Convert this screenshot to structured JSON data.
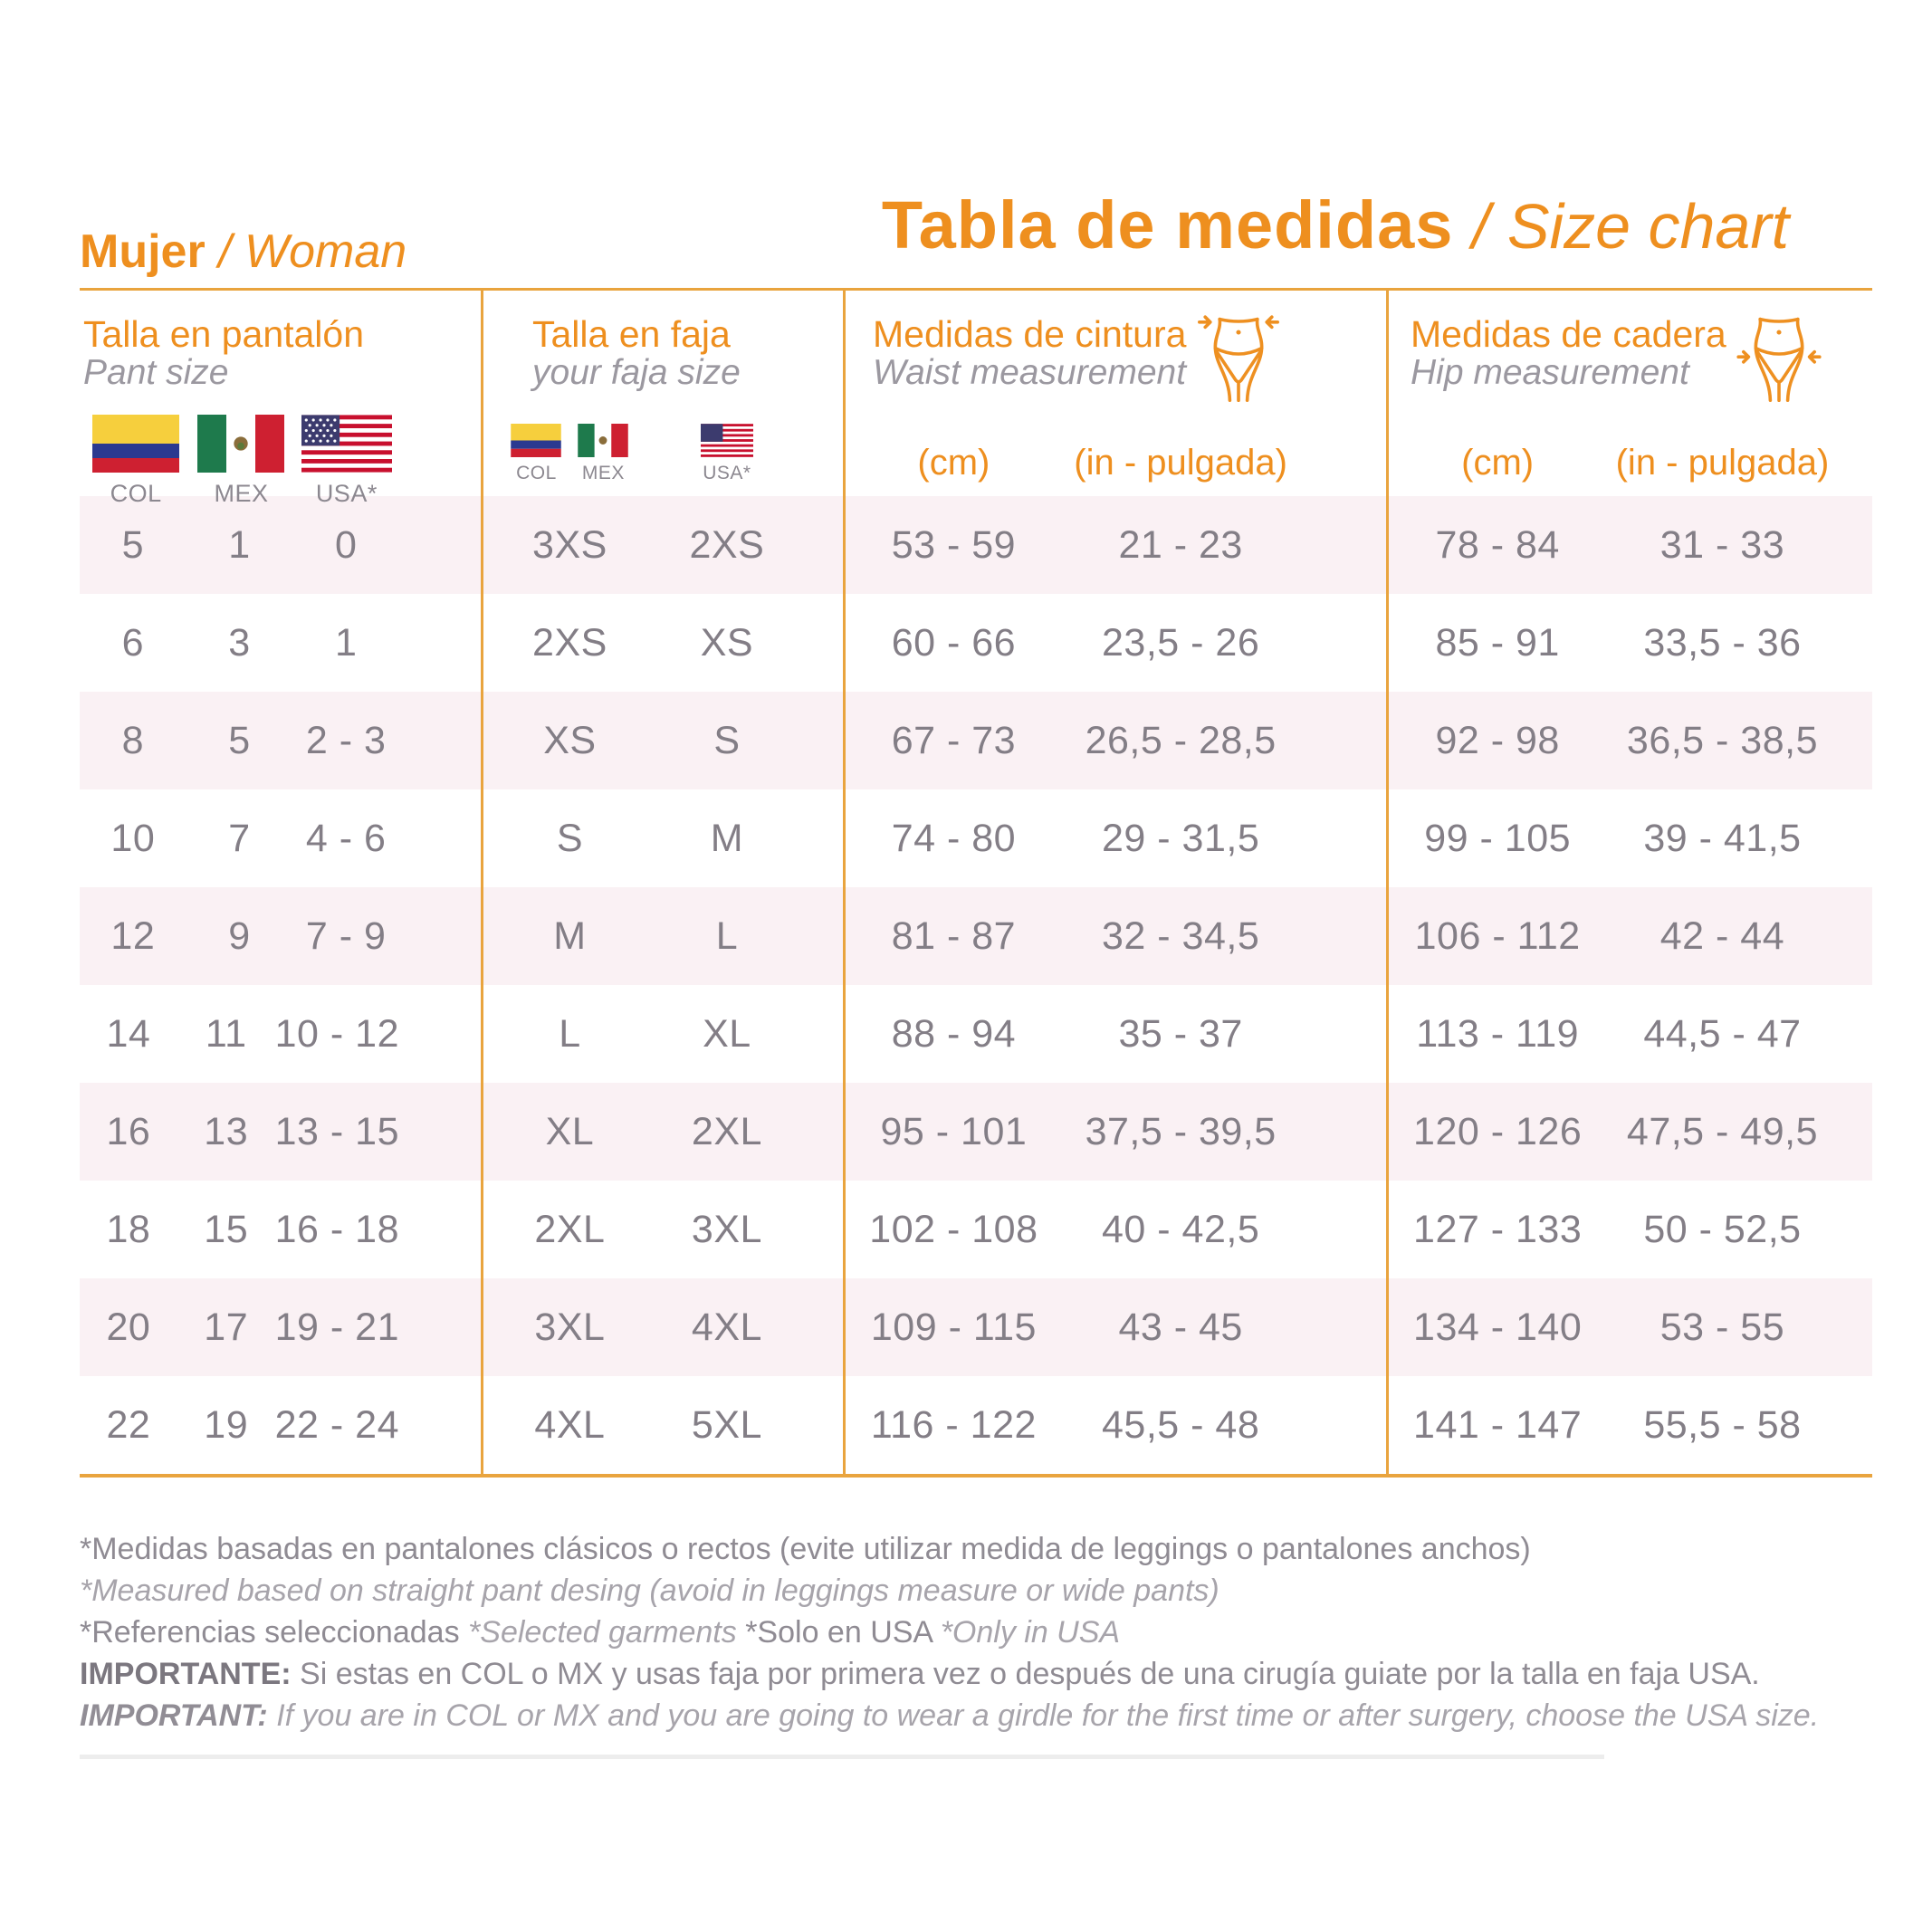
{
  "titles": {
    "section_bold": "Mujer",
    "section_rest": "/ Woman",
    "main_bold": "Tabla de medidas",
    "main_rest": "/ Size chart"
  },
  "colors": {
    "accent_orange": "#EE8F1F",
    "line_orange": "#E9A43E",
    "row_pink": "#FAF1F4",
    "data_gray": "#837E86",
    "subtitle_gray": "#9B98A0"
  },
  "table": {
    "groups": [
      {
        "title_es": "Talla en pantalón",
        "title_en": "Pant size",
        "flags": [
          "COL",
          "MEX",
          "USA*"
        ]
      },
      {
        "title_es": "Talla en faja",
        "title_en": "your faja size",
        "flags": [
          "COL",
          "MEX",
          "USA*"
        ]
      },
      {
        "title_es": "Medidas de cintura",
        "title_en": "Waist  measurement",
        "icon": "waist-measure-icon",
        "units": [
          "(cm)",
          "(in - pulgada)"
        ]
      },
      {
        "title_es": "Medidas de cadera",
        "title_en": "Hip  measurement",
        "icon": "hip-measure-icon",
        "units": [
          "(cm)",
          "(in - pulgada)"
        ]
      }
    ],
    "rows": [
      {
        "pant_col": "5",
        "pant_mex": "1",
        "pant_usa": "0",
        "faja_colmex": "3XS",
        "faja_usa": "2XS",
        "waist_cm": "53 - 59",
        "waist_in": "21 - 23",
        "hip_cm": "78 - 84",
        "hip_in": "31 - 33"
      },
      {
        "pant_col": "6",
        "pant_mex": "3",
        "pant_usa": "1",
        "faja_colmex": "2XS",
        "faja_usa": "XS",
        "waist_cm": "60 - 66",
        "waist_in": "23,5 - 26",
        "hip_cm": "85 - 91",
        "hip_in": "33,5 - 36"
      },
      {
        "pant_col": "8",
        "pant_mex": "5",
        "pant_usa": "2 - 3",
        "faja_colmex": "XS",
        "faja_usa": "S",
        "waist_cm": "67 - 73",
        "waist_in": "26,5 - 28,5",
        "hip_cm": "92 - 98",
        "hip_in": "36,5 - 38,5"
      },
      {
        "pant_col": "10",
        "pant_mex": "7",
        "pant_usa": "4 - 6",
        "faja_colmex": "S",
        "faja_usa": "M",
        "waist_cm": "74 - 80",
        "waist_in": "29 - 31,5",
        "hip_cm": "99 - 105",
        "hip_in": "39 - 41,5"
      },
      {
        "pant_col": "12",
        "pant_mex": "9",
        "pant_usa": "7 - 9",
        "faja_colmex": "M",
        "faja_usa": "L",
        "waist_cm": "81 - 87",
        "waist_in": "32 - 34,5",
        "hip_cm": "106 - 112",
        "hip_in": "42 - 44"
      },
      {
        "pant_col": "14",
        "pant_mex": "11",
        "pant_usa": "10 - 12",
        "faja_colmex": "L",
        "faja_usa": "XL",
        "waist_cm": "88 - 94",
        "waist_in": "35 - 37",
        "hip_cm": "113 - 119",
        "hip_in": "44,5 - 47"
      },
      {
        "pant_col": "16",
        "pant_mex": "13",
        "pant_usa": "13 - 15",
        "faja_colmex": "XL",
        "faja_usa": "2XL",
        "waist_cm": "95 - 101",
        "waist_in": "37,5 - 39,5",
        "hip_cm": "120 - 126",
        "hip_in": "47,5 - 49,5"
      },
      {
        "pant_col": "18",
        "pant_mex": "15",
        "pant_usa": "16 - 18",
        "faja_colmex": "2XL",
        "faja_usa": "3XL",
        "waist_cm": "102 - 108",
        "waist_in": "40 - 42,5",
        "hip_cm": "127 - 133",
        "hip_in": "50 - 52,5"
      },
      {
        "pant_col": "20",
        "pant_mex": "17",
        "pant_usa": "19 - 21",
        "faja_colmex": "3XL",
        "faja_usa": "4XL",
        "waist_cm": "109 - 115",
        "waist_in": "43 - 45",
        "hip_cm": "134 - 140",
        "hip_in": "53 - 55"
      },
      {
        "pant_col": "22",
        "pant_mex": "19",
        "pant_usa": "22 - 24",
        "faja_colmex": "4XL",
        "faja_usa": "5XL",
        "waist_cm": "116 - 122",
        "waist_in": "45,5 - 48",
        "hip_cm": "141 - 147",
        "hip_in": "55,5 - 58"
      }
    ]
  },
  "footnotes": [
    {
      "segments": [
        {
          "text": "*Medidas basadas en pantalones clásicos o rectos (evite utilizar medida de leggings o pantalones anchos)",
          "style": "regular"
        }
      ]
    },
    {
      "segments": [
        {
          "text": "*Measured based on straight pant desing (avoid in leggings measure or wide pants)",
          "style": "italic"
        }
      ]
    },
    {
      "segments": [
        {
          "text": "*Referencias seleccionadas ",
          "style": "regular"
        },
        {
          "text": "*Selected garments ",
          "style": "italic"
        },
        {
          "text": "*Solo en USA ",
          "style": "regular"
        },
        {
          "text": "*Only in USA",
          "style": "italic"
        }
      ]
    },
    {
      "segments": [
        {
          "text": "IMPORTANTE: ",
          "style": "bold"
        },
        {
          "text": "Si estas en COL o MX y usas faja por primera vez o después de una cirugía guiate por la talla en faja USA.",
          "style": "regular"
        }
      ]
    },
    {
      "segments": [
        {
          "text": "IMPORTANT: ",
          "style": "bold-italic"
        },
        {
          "text": "If you are in COL or MX and you are going to wear a girdle for the first time or after surgery, choose the USA size.",
          "style": "italic"
        }
      ]
    }
  ]
}
